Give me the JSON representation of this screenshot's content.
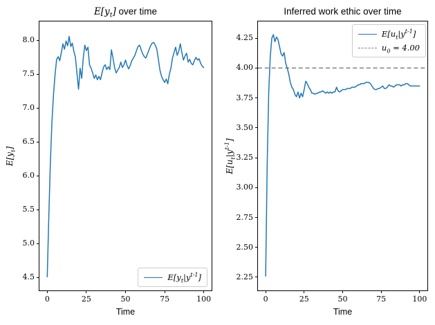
{
  "colors": {
    "series_blue": "#1f77b4",
    "reference_gray": "#808080",
    "spine_black": "#000000",
    "legend_border": "#cccccc",
    "background": "#ffffff"
  },
  "chart_data": [
    {
      "type": "line",
      "title": "E[y_t] over time",
      "title_math": "E[y_t]",
      "title_text": " over time",
      "xlabel": "Time",
      "ylabel": "E[y_t]",
      "xlim": [
        -5,
        105
      ],
      "ylim": [
        4.31,
        8.28
      ],
      "xticks": [
        0,
        25,
        50,
        75,
        100
      ],
      "ytick_values": [
        4.5,
        5.0,
        5.5,
        6.0,
        6.5,
        7.0,
        7.5,
        8.0
      ],
      "ytick_labels": [
        "4.5",
        "5.0",
        "5.5",
        "6.0",
        "6.5",
        "7.0",
        "7.5",
        "8.0"
      ],
      "grid": false,
      "legend": {
        "position": "lower right",
        "entries": [
          {
            "label": "E[y_t|y^{t-1}]",
            "line": "solid",
            "color": "#1f77b4"
          }
        ]
      },
      "series": [
        {
          "name": "E[y_t|y^{t-1}]",
          "color": "#1f77b4",
          "linewidth": 1.5,
          "x_start": 0,
          "x_step": 1,
          "values": [
            4.51,
            5.4,
            6.2,
            6.8,
            7.2,
            7.5,
            7.72,
            7.76,
            7.7,
            7.82,
            7.95,
            7.87,
            7.99,
            7.92,
            8.06,
            7.91,
            7.96,
            7.84,
            7.75,
            7.51,
            7.28,
            7.59,
            7.44,
            7.74,
            7.93,
            7.85,
            7.9,
            7.64,
            7.59,
            7.52,
            7.44,
            7.49,
            7.42,
            7.47,
            7.42,
            7.52,
            7.61,
            7.64,
            7.57,
            7.61,
            7.57,
            7.86,
            7.74,
            7.6,
            7.52,
            7.56,
            7.6,
            7.68,
            7.6,
            7.64,
            7.71,
            7.63,
            7.58,
            7.63,
            7.7,
            7.74,
            7.78,
            7.85,
            7.91,
            7.93,
            7.86,
            7.8,
            7.76,
            7.74,
            7.8,
            7.86,
            7.92,
            7.96,
            7.97,
            7.93,
            7.87,
            7.72,
            7.56,
            7.47,
            7.42,
            7.38,
            7.43,
            7.36,
            7.5,
            7.59,
            7.74,
            7.82,
            7.9,
            7.78,
            7.84,
            7.95,
            7.82,
            7.71,
            7.77,
            7.81,
            7.68,
            7.72,
            7.66,
            7.64,
            7.7,
            7.75,
            7.71,
            7.73,
            7.66,
            7.62,
            7.6
          ]
        }
      ]
    },
    {
      "type": "line",
      "title": "Inferred work ethic over time",
      "title_math": "",
      "title_text": "Inferred work ethic over time",
      "xlabel": "Time",
      "ylabel": "E[u_t|y^{t-1}]",
      "xlim": [
        -5,
        105
      ],
      "ylim": [
        2.14,
        4.39
      ],
      "xticks": [
        0,
        25,
        50,
        75,
        100
      ],
      "ytick_values": [
        2.25,
        2.5,
        2.75,
        3.0,
        3.25,
        3.5,
        3.75,
        4.0,
        4.25
      ],
      "ytick_labels": [
        "2.25",
        "2.50",
        "2.75",
        "3.00",
        "3.25",
        "3.50",
        "3.75",
        "4.00",
        "4.25"
      ],
      "grid": false,
      "hline": {
        "y": 4.0,
        "label": "u_0 = 4.00",
        "line": "dashed",
        "color": "#808080"
      },
      "legend": {
        "position": "upper right",
        "entries": [
          {
            "label": "E[u_t|y^{t-1}]",
            "line": "solid",
            "color": "#1f77b4"
          },
          {
            "label": "u_0 = 4.00",
            "line": "dashed",
            "color": "#808080"
          }
        ]
      },
      "series": [
        {
          "name": "E[u_t|y^{t-1}]",
          "color": "#1f77b4",
          "linewidth": 1.5,
          "x_start": 0,
          "x_step": 1,
          "values": [
            2.26,
            3.2,
            3.8,
            4.1,
            4.25,
            4.28,
            4.22,
            4.26,
            4.24,
            4.18,
            4.12,
            4.1,
            4.13,
            4.04,
            4.0,
            3.95,
            3.88,
            3.84,
            3.82,
            3.78,
            3.76,
            3.8,
            3.75,
            3.79,
            3.76,
            3.82,
            3.89,
            3.87,
            3.84,
            3.82,
            3.79,
            3.79,
            3.78,
            3.79,
            3.79,
            3.8,
            3.8,
            3.81,
            3.8,
            3.79,
            3.8,
            3.79,
            3.8,
            3.79,
            3.8,
            3.8,
            3.84,
            3.81,
            3.8,
            3.81,
            3.82,
            3.82,
            3.82,
            3.83,
            3.83,
            3.83,
            3.84,
            3.84,
            3.84,
            3.85,
            3.86,
            3.86,
            3.87,
            3.87,
            3.87,
            3.88,
            3.88,
            3.88,
            3.87,
            3.85,
            3.83,
            3.82,
            3.82,
            3.83,
            3.83,
            3.84,
            3.85,
            3.83,
            3.83,
            3.84,
            3.86,
            3.85,
            3.85,
            3.84,
            3.85,
            3.86,
            3.86,
            3.86,
            3.85,
            3.86,
            3.86,
            3.87,
            3.87,
            3.86,
            3.85,
            3.85,
            3.85,
            3.85,
            3.85,
            3.85,
            3.85
          ]
        }
      ]
    }
  ]
}
